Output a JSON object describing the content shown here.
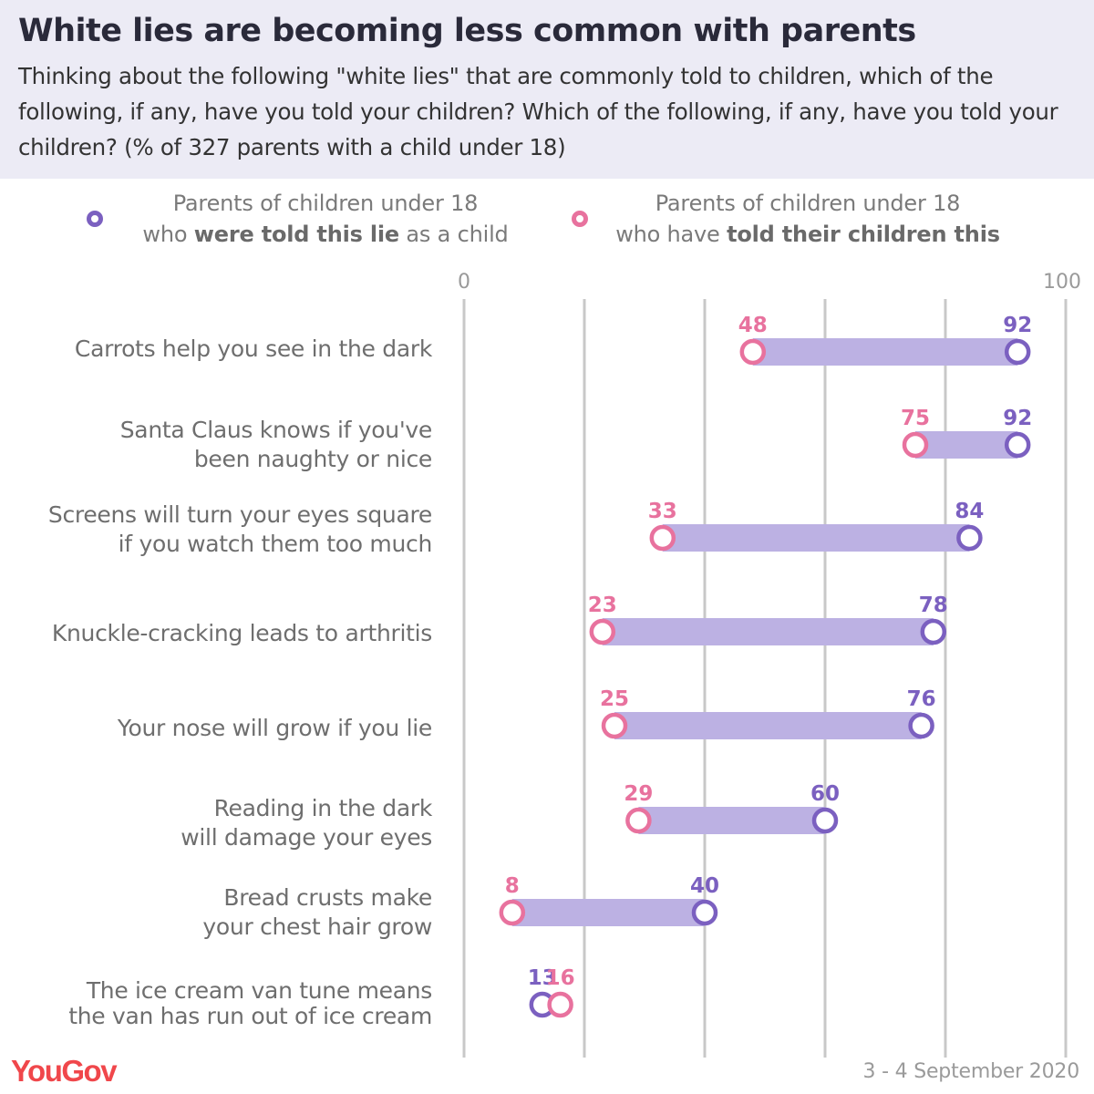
{
  "header": {
    "title": "White lies are becoming less common with parents",
    "subtitle": "Thinking about the following \"white lies\" that are commonly told to children, which of the following, if any, have you told your children? Which of the following, if any, have you told your children? (% of 327 parents with a child under 18)"
  },
  "legend": {
    "told_as_child": {
      "line1": "Parents of children under 18",
      "line2_pre": "who ",
      "line2_bold": "were told this lie",
      "line2_post": " as a child",
      "color": "#7b60c0"
    },
    "told_children": {
      "line1": "Parents of children under 18",
      "line2_pre": "who have ",
      "line2_bold": "told their children this",
      "line2_post": "",
      "color": "#e8729e"
    }
  },
  "chart_data": {
    "type": "dumbbell",
    "xlim": [
      0,
      100
    ],
    "tick_labels": [
      "0",
      "100"
    ],
    "gridlines": [
      0,
      20,
      40,
      60,
      80,
      100
    ],
    "bar_color": "#bcb1e3",
    "categories": [
      [
        "Carrots help you see in the dark"
      ],
      [
        "Santa Claus knows if you've",
        "been naughty or nice"
      ],
      [
        "Screens will turn your eyes square",
        "if you watch them too much"
      ],
      [
        "Knuckle-cracking leads to arthritis"
      ],
      [
        "Your nose will grow if you lie"
      ],
      [
        "Reading in the dark",
        "will damage your eyes"
      ],
      [
        "Bread crusts make",
        "your chest hair grow"
      ],
      [
        "The ice cream van tune means",
        "the van has run out of ice cream"
      ]
    ],
    "series": [
      {
        "name": "Parents of children under 18 who were told this lie as a child",
        "color": "#7b60c0",
        "values": [
          92,
          92,
          84,
          78,
          76,
          60,
          40,
          13
        ]
      },
      {
        "name": "Parents of children under 18 who have told their children this",
        "color": "#e8729e",
        "values": [
          48,
          75,
          33,
          23,
          25,
          29,
          8,
          16
        ]
      }
    ]
  },
  "footer": {
    "logo": "YouGov",
    "date": "3 - 4 September 2020"
  }
}
